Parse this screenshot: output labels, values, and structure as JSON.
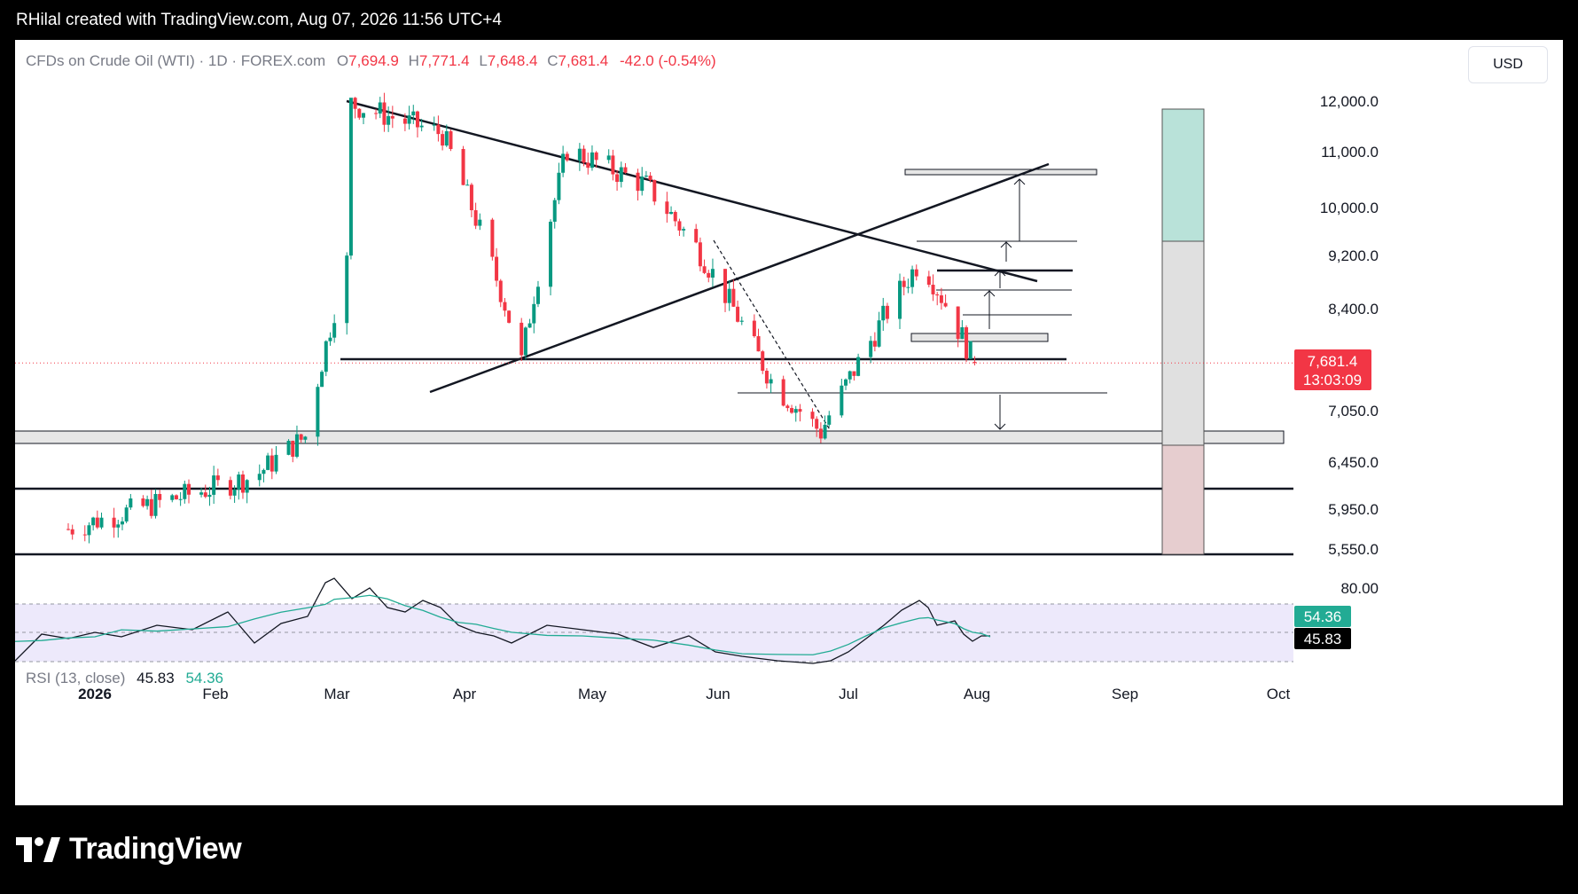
{
  "header": {
    "text": "RHilal created with TradingView.com, Aug 07, 2026 11:56 UTC+4"
  },
  "symbol": {
    "description": "CFDs on Crude Oil (WTI) · 1D · FOREX.com",
    "open_label": "O",
    "open": "7,694.9",
    "high_label": "H",
    "high": "7,771.4",
    "low_label": "L",
    "low": "7,648.4",
    "close_label": "C",
    "close": "7,681.4",
    "change": "-42.0 (-0.54%)"
  },
  "currency_button": "USD",
  "price_tag": {
    "price": "7,681.4",
    "countdown": "13:03:09"
  },
  "rsi": {
    "label": "RSI (13, close)",
    "value": "45.83",
    "ma_value": "54.36",
    "axis_labels": [
      "80.00"
    ]
  },
  "brand": "TradingView",
  "colors": {
    "up": "#089981",
    "down": "#f23645",
    "rsi_band": "#ede9fb",
    "rsi_ma": "#22ab94"
  },
  "chart_data": {
    "type": "candlestick",
    "title": "CFDs on Crude Oil (WTI) · 1D · FOREX.com",
    "y_axis_labels": [
      "12,000.0",
      "11,000.0",
      "10,000.0",
      "9,200.0",
      "8,400.0",
      "7,050.0",
      "6,450.0",
      "5,950.0",
      "5,550.0"
    ],
    "x_axis_labels": [
      "2026",
      "Feb",
      "Mar",
      "Apr",
      "May",
      "Jun",
      "Jul",
      "Aug",
      "Sep",
      "Oct"
    ],
    "ylim": [
      5400,
      12300
    ],
    "last_price": 7681.4,
    "grid": false,
    "ohlc_key_points": [
      {
        "date": "2026-01-01",
        "close": 5750
      },
      {
        "date": "2026-02-15",
        "close": 6300
      },
      {
        "date": "2026-02-27",
        "close": 6750
      },
      {
        "date": "2026-03-09",
        "close": 9100
      },
      {
        "date": "2026-03-10",
        "high": 11950
      },
      {
        "date": "2026-04-01",
        "high": 11350
      },
      {
        "date": "2026-04-20",
        "low": 7700
      },
      {
        "date": "2026-05-01",
        "high": 11050
      },
      {
        "date": "2026-05-20",
        "high": 10400
      },
      {
        "date": "2026-06-01",
        "close": 9350
      },
      {
        "date": "2026-06-20",
        "close": 7350
      },
      {
        "date": "2026-07-01",
        "low": 6800
      },
      {
        "date": "2026-07-25",
        "high": 9150
      },
      {
        "date": "2026-08-07",
        "open": 7694.9,
        "high": 7771.4,
        "low": 7648.4,
        "close": 7681.4
      }
    ],
    "drawn_levels": [
      5530,
      6150,
      6800,
      7720,
      8350,
      8620,
      8900
    ],
    "rsi_series": {
      "name": "RSI (13, close)",
      "last": 45.83,
      "ma_last": 54.36,
      "band": [
        30,
        70
      ]
    }
  }
}
